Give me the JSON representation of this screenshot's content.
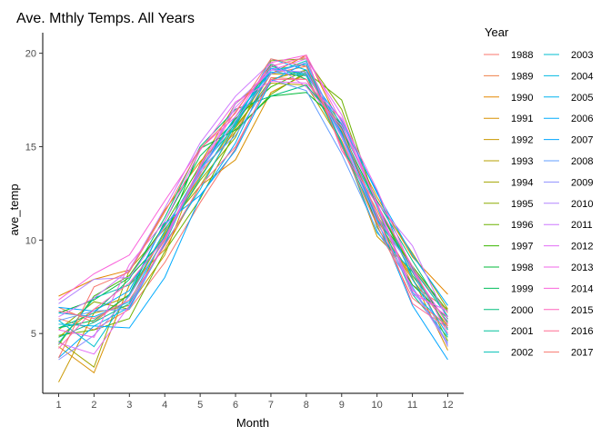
{
  "chart_data": {
    "type": "line",
    "title": "Ave. Mthly Temps. All Years",
    "xlabel": "Month",
    "ylabel": "ave_temp",
    "x": [
      1,
      2,
      3,
      4,
      5,
      6,
      7,
      8,
      9,
      10,
      11,
      12
    ],
    "xlim": [
      0.55,
      12.45
    ],
    "ylim": [
      1.8,
      21.1
    ],
    "yticks": [
      5,
      10,
      15,
      20
    ],
    "grid": false,
    "legend": {
      "title": "Year",
      "placement": "right"
    },
    "series": [
      {
        "name": "1988",
        "color": "#F8766D",
        "values": [
          5.8,
          5.2,
          6.3,
          8.8,
          12.0,
          14.9,
          18.7,
          18.6,
          15.3,
          11.2,
          8.5,
          6.1
        ]
      },
      {
        "name": "1989",
        "color": "#EF7F48",
        "values": [
          6.4,
          5.6,
          7.1,
          10.0,
          13.6,
          15.8,
          18.9,
          19.3,
          15.0,
          11.6,
          7.6,
          6.3
        ]
      },
      {
        "name": "1990",
        "color": "#E58700",
        "values": [
          7.0,
          7.9,
          8.4,
          11.6,
          14.2,
          16.2,
          18.9,
          19.9,
          16.0,
          12.3,
          9.1,
          7.1
        ]
      },
      {
        "name": "1991",
        "color": "#D89000",
        "values": [
          4.3,
          2.9,
          7.6,
          9.5,
          12.9,
          14.3,
          17.9,
          18.9,
          16.0,
          11.1,
          8.0,
          4.1
        ]
      },
      {
        "name": "1992",
        "color": "#C99800",
        "values": [
          2.4,
          6.1,
          6.5,
          9.2,
          14.1,
          17.3,
          18.9,
          18.8,
          15.3,
          10.2,
          8.3,
          5.5
        ]
      },
      {
        "name": "1993",
        "color": "#B79F00",
        "values": [
          4.8,
          6.3,
          7.0,
          10.4,
          13.4,
          16.1,
          18.4,
          18.3,
          15.2,
          10.9,
          7.9,
          5.4
        ]
      },
      {
        "name": "1994",
        "color": "#A3A500",
        "values": [
          4.6,
          3.2,
          8.4,
          10.6,
          12.9,
          16.0,
          18.6,
          19.1,
          15.6,
          12.1,
          9.3,
          6.3
        ]
      },
      {
        "name": "1995",
        "color": "#8BAB00",
        "values": [
          5.2,
          6.7,
          6.3,
          10.3,
          13.2,
          15.5,
          19.6,
          19.7,
          17.0,
          11.8,
          8.3,
          4.6
        ]
      },
      {
        "name": "1996",
        "color": "#6BB100",
        "values": [
          4.9,
          5.2,
          5.8,
          9.4,
          12.2,
          15.8,
          17.8,
          19.0,
          17.5,
          11.8,
          8.5,
          5.2
        ]
      },
      {
        "name": "1997",
        "color": "#39B600",
        "values": [
          4.4,
          7.0,
          8.1,
          10.8,
          14.0,
          16.5,
          18.2,
          19.1,
          15.7,
          11.3,
          8.6,
          6.2
        ]
      },
      {
        "name": "1998",
        "color": "#00BA38",
        "values": [
          6.1,
          6.8,
          8.0,
          10.1,
          14.9,
          15.9,
          17.7,
          17.9,
          16.2,
          10.7,
          7.6,
          5.8
        ]
      },
      {
        "name": "1999",
        "color": "#00BD5C",
        "values": [
          5.3,
          5.7,
          7.1,
          11.0,
          14.5,
          16.4,
          19.4,
          18.6,
          15.8,
          11.9,
          8.1,
          5.6
        ]
      },
      {
        "name": "2000",
        "color": "#00BF7D",
        "values": [
          5.3,
          6.1,
          7.9,
          11.2,
          15.0,
          17.0,
          17.7,
          18.3,
          16.0,
          12.1,
          8.9,
          5.9
        ]
      },
      {
        "name": "2001",
        "color": "#00C19A",
        "values": [
          4.8,
          5.6,
          6.6,
          9.8,
          13.9,
          16.1,
          19.3,
          18.8,
          15.1,
          11.4,
          7.1,
          4.8
        ]
      },
      {
        "name": "2002",
        "color": "#00C0B5",
        "values": [
          4.5,
          6.9,
          7.6,
          10.2,
          13.3,
          16.3,
          18.9,
          19.6,
          15.0,
          11.1,
          8.5,
          5.9
        ]
      },
      {
        "name": "2003",
        "color": "#00BECF",
        "values": [
          5.7,
          4.3,
          7.1,
          10.5,
          13.8,
          16.6,
          19.1,
          19.4,
          15.2,
          10.4,
          8.3,
          5.2
        ]
      },
      {
        "name": "2004",
        "color": "#00B9E3",
        "values": [
          5.5,
          5.4,
          6.4,
          9.8,
          12.7,
          16.2,
          19.7,
          19.1,
          15.6,
          11.8,
          7.2,
          5.3
        ]
      },
      {
        "name": "2005",
        "color": "#00B4EF",
        "values": [
          6.1,
          5.9,
          6.7,
          10.2,
          13.7,
          16.6,
          19.0,
          18.8,
          16.2,
          12.6,
          7.9,
          4.9
        ]
      },
      {
        "name": "2006",
        "color": "#00ABFD",
        "values": [
          3.7,
          5.4,
          5.3,
          8.0,
          12.3,
          15.2,
          19.2,
          18.9,
          16.4,
          12.5,
          9.2,
          6.5
        ]
      },
      {
        "name": "2007",
        "color": "#00A5FF",
        "values": [
          6.4,
          6.2,
          7.3,
          10.9,
          12.4,
          14.8,
          18.5,
          19.5,
          15.7,
          11.1,
          6.5,
          3.6
        ]
      },
      {
        "name": "2008",
        "color": "#619CFF",
        "values": [
          5.7,
          6.2,
          6.3,
          9.9,
          13.8,
          15.6,
          18.6,
          18.0,
          14.6,
          10.5,
          7.5,
          4.5
        ]
      },
      {
        "name": "2009",
        "color": "#8F91FF",
        "values": [
          3.6,
          4.9,
          7.0,
          10.1,
          13.7,
          16.4,
          18.9,
          19.5,
          15.6,
          11.3,
          8.4,
          4.3
        ]
      },
      {
        "name": "2010",
        "color": "#B385FF",
        "values": [
          6.6,
          7.9,
          8.0,
          10.7,
          13.5,
          17.3,
          19.1,
          19.0,
          15.5,
          11.0,
          7.4,
          4.4
        ]
      },
      {
        "name": "2011",
        "color": "#CE79FF",
        "values": [
          5.9,
          6.9,
          8.4,
          11.7,
          15.2,
          17.7,
          19.5,
          18.2,
          16.1,
          12.0,
          9.7,
          5.7
        ]
      },
      {
        "name": "2012",
        "color": "#E26EF7",
        "values": [
          4.5,
          3.9,
          6.5,
          9.9,
          14.0,
          17.1,
          19.1,
          19.7,
          16.7,
          11.9,
          7.1,
          6.2
        ]
      },
      {
        "name": "2013",
        "color": "#F066EA",
        "values": [
          5.2,
          4.8,
          8.7,
          11.0,
          14.8,
          17.4,
          18.5,
          18.4,
          16.5,
          12.7,
          8.4,
          5.5
        ]
      },
      {
        "name": "2014",
        "color": "#FA62DB",
        "values": [
          6.8,
          8.2,
          9.2,
          12.1,
          14.9,
          16.6,
          19.5,
          19.9,
          16.3,
          12.0,
          7.3,
          5.9
        ]
      },
      {
        "name": "2015",
        "color": "#FF62BC",
        "values": [
          4.2,
          6.3,
          7.7,
          10.1,
          13.9,
          16.9,
          19.3,
          19.8,
          14.8,
          11.9,
          8.6,
          5.0
        ]
      },
      {
        "name": "2016",
        "color": "#FF6C91",
        "values": [
          6.2,
          5.8,
          6.8,
          9.7,
          12.9,
          15.0,
          18.6,
          18.6,
          15.9,
          11.4,
          6.6,
          5.3
        ]
      },
      {
        "name": "2017",
        "color": "#F8766D",
        "values": [
          3.7,
          7.5,
          8.3,
          11.5,
          14.9,
          16.8,
          19.7,
          19.3,
          15.0,
          10.8,
          6.9,
          5.4
        ]
      }
    ]
  }
}
